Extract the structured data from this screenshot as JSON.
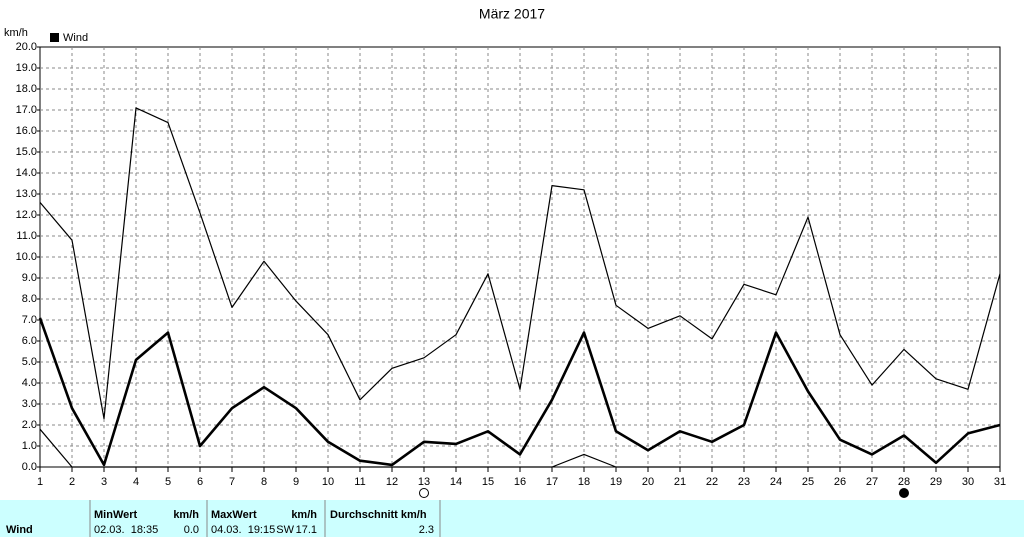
{
  "chart_data": {
    "type": "line",
    "title": "März 2017",
    "y_label": "km/h",
    "x": [
      1,
      2,
      3,
      4,
      5,
      6,
      7,
      8,
      9,
      10,
      11,
      12,
      13,
      14,
      15,
      16,
      17,
      18,
      19,
      20,
      21,
      22,
      23,
      24,
      25,
      26,
      27,
      28,
      29,
      30,
      31
    ],
    "xlim": [
      1,
      31
    ],
    "xticks": [
      1,
      2,
      3,
      4,
      5,
      6,
      7,
      8,
      9,
      10,
      11,
      12,
      13,
      14,
      15,
      16,
      17,
      18,
      19,
      20,
      21,
      22,
      23,
      24,
      25,
      26,
      27,
      28,
      29,
      30,
      31
    ],
    "ylim": [
      0,
      20
    ],
    "yticks": [
      {
        "value": 0,
        "label": "0.0"
      },
      {
        "value": 1,
        "label": "1.0"
      },
      {
        "value": 2,
        "label": "2.0"
      },
      {
        "value": 3,
        "label": "3.0"
      },
      {
        "value": 4,
        "label": "4.0"
      },
      {
        "value": 5,
        "label": "5.0"
      },
      {
        "value": 6,
        "label": "6.0"
      },
      {
        "value": 7,
        "label": "7.0"
      },
      {
        "value": 8,
        "label": "8.0"
      },
      {
        "value": 9,
        "label": "9.0"
      },
      {
        "value": 10,
        "label": "10.0"
      },
      {
        "value": 11,
        "label": "11.0"
      },
      {
        "value": 12,
        "label": "12.0"
      },
      {
        "value": 13,
        "label": "13.0"
      },
      {
        "value": 14,
        "label": "14.0"
      },
      {
        "value": 15,
        "label": "15.0"
      },
      {
        "value": 16,
        "label": "16.0"
      },
      {
        "value": 17,
        "label": "17.0"
      },
      {
        "value": 18,
        "label": "18.0"
      },
      {
        "value": 19,
        "label": "19.0"
      },
      {
        "value": 20,
        "label": "20.0"
      }
    ],
    "grid": true,
    "series": [
      {
        "color": "#000000",
        "width": 1.2,
        "values": [
          12.6,
          10.8,
          2.3,
          17.1,
          16.4,
          12.1,
          7.6,
          9.8,
          7.9,
          6.3,
          3.2,
          4.7,
          5.2,
          6.3,
          9.2,
          3.7,
          13.4,
          13.2,
          7.7,
          6.6,
          7.2,
          6.1,
          8.7,
          8.2,
          11.9,
          6.3,
          3.9,
          5.6,
          4.2,
          3.7,
          9.2
        ]
      },
      {
        "name": "Wind",
        "color": "#000000",
        "width": 2.6,
        "values": [
          7.1,
          2.8,
          0.1,
          5.1,
          6.4,
          1.0,
          2.8,
          3.8,
          2.8,
          1.2,
          0.3,
          0.1,
          1.2,
          1.1,
          1.7,
          0.6,
          3.2,
          6.4,
          1.7,
          0.8,
          1.7,
          1.2,
          2.0,
          6.4,
          3.6,
          1.3,
          0.6,
          1.5,
          0.2,
          1.6,
          2.0
        ]
      },
      {
        "color": "#000000",
        "width": 1.2,
        "values": [
          1.8,
          0,
          0,
          0,
          0,
          0,
          0,
          0,
          0,
          0,
          0,
          0,
          0,
          0,
          0,
          0,
          0,
          0.6,
          0,
          0,
          0,
          0,
          0,
          0,
          0,
          0,
          0,
          0,
          0,
          0,
          0
        ]
      }
    ]
  },
  "table": {
    "header": [
      "MinWert",
      "km/h",
      "MaxWert",
      "km/h",
      "Durchschnitt km/h"
    ],
    "rows": [
      [
        "Wind",
        "02.03.  18:35",
        "0.0",
        "04.03.  19:15",
        "SW",
        "17.1",
        "2.3"
      ]
    ]
  }
}
